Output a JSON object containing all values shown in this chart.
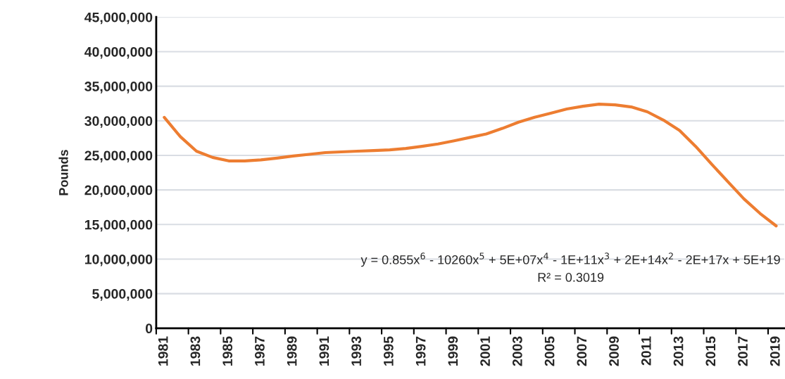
{
  "chart_data": {
    "type": "line",
    "ylabel": "Pounds",
    "categories": [
      "1981",
      null,
      "1983",
      null,
      "1985",
      null,
      "1987",
      null,
      "1989",
      null,
      "1991",
      null,
      "1993",
      null,
      "1995",
      null,
      "1997",
      null,
      "1999",
      null,
      "2001",
      null,
      "2003",
      null,
      "2005",
      null,
      "2007",
      null,
      "2009",
      null,
      "2011",
      null,
      "2013",
      null,
      "2015",
      null,
      "2017",
      null,
      "2019"
    ],
    "series": [
      {
        "color": "#ed7d31",
        "values": [
          30500000,
          27700000,
          25600000,
          24700000,
          24200000,
          24200000,
          24350000,
          24600000,
          24900000,
          25150000,
          25400000,
          25500000,
          25600000,
          25700000,
          25800000,
          26000000,
          26300000,
          26650000,
          27100000,
          27600000,
          28100000,
          28900000,
          29800000,
          30500000,
          31100000,
          31700000,
          32100000,
          32400000,
          32300000,
          32000000,
          31300000,
          30100000,
          28600000,
          26300000,
          23700000,
          21200000,
          18700000,
          16600000,
          14800000
        ]
      }
    ],
    "ylim": [
      0,
      45000000
    ],
    "yticks": [
      {
        "value": 0,
        "label": "0"
      },
      {
        "value": 5000000,
        "label": "5,000,000"
      },
      {
        "value": 10000000,
        "label": "10,000,000"
      },
      {
        "value": 15000000,
        "label": "15,000,000"
      },
      {
        "value": 20000000,
        "label": "20,000,000"
      },
      {
        "value": 25000000,
        "label": "25,000,000"
      },
      {
        "value": 30000000,
        "label": "30,000,000"
      },
      {
        "value": 35000000,
        "label": "35,000,000"
      },
      {
        "value": 40000000,
        "label": "40,000,000"
      },
      {
        "value": 45000000,
        "label": "45,000,000"
      }
    ],
    "grid": "y",
    "legend": false,
    "marker": "none",
    "line_style": "solid",
    "annotations": [
      "y = 0.855x$^{6}$ - 10260x$^{5}$ + 5E+07x$^{4}$ - 1E+11x$^{3}$ + 2E+14x$^{2}$ - 2E+17x + 5E+19",
      "R² = 0.3019"
    ]
  }
}
